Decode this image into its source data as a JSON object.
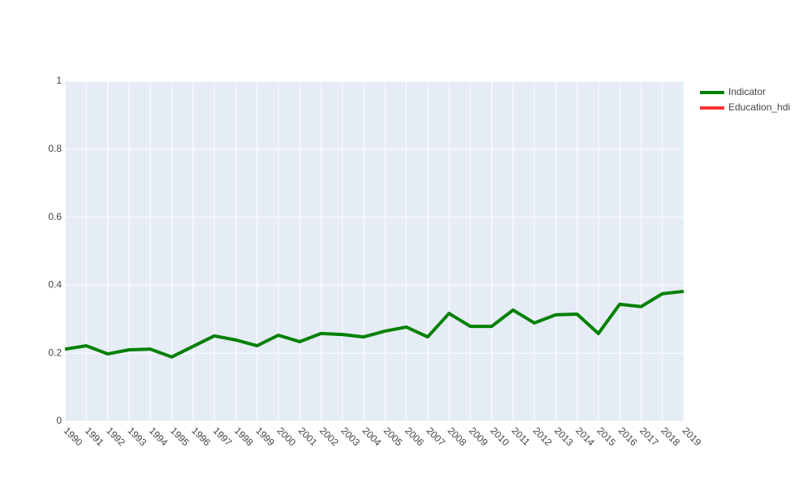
{
  "chart_data": {
    "type": "line",
    "x": [
      1990,
      1991,
      1992,
      1993,
      1994,
      1995,
      1996,
      1997,
      1998,
      1999,
      2000,
      2001,
      2002,
      2003,
      2004,
      2005,
      2006,
      2007,
      2008,
      2009,
      2010,
      2011,
      2012,
      2013,
      2014,
      2015,
      2016,
      2017,
      2018,
      2019
    ],
    "series": [
      {
        "name": "Indicator",
        "color": "#008000",
        "values": [
          0.212,
          0.222,
          0.198,
          0.21,
          0.212,
          0.189,
          0.22,
          0.251,
          0.239,
          0.222,
          0.253,
          0.234,
          0.258,
          0.255,
          0.248,
          0.265,
          0.277,
          0.248,
          0.317,
          0.279,
          0.279,
          0.327,
          0.289,
          0.313,
          0.315,
          0.258,
          0.344,
          0.337,
          0.375,
          0.382
        ]
      },
      {
        "name": "Education_hdi",
        "color": "#ff3333",
        "values": [
          null,
          null,
          null,
          null,
          null,
          null,
          null,
          null,
          null,
          null,
          null,
          null,
          null,
          null,
          null,
          null,
          null,
          null,
          null,
          null,
          null,
          null,
          null,
          null,
          null,
          null,
          null,
          null,
          null,
          null
        ]
      }
    ],
    "xlim": [
      1990,
      2019
    ],
    "xticks": [
      1990,
      1991,
      1992,
      1993,
      1994,
      1995,
      1996,
      1997,
      1998,
      1999,
      2000,
      2001,
      2002,
      2003,
      2004,
      2005,
      2006,
      2007,
      2008,
      2009,
      2010,
      2011,
      2012,
      2013,
      2014,
      2015,
      2016,
      2017,
      2018,
      2019
    ],
    "ylim": [
      0,
      1
    ],
    "yticks": [
      0,
      0.2,
      0.4,
      0.6,
      0.8,
      1
    ],
    "grid": true,
    "legend": "right"
  }
}
